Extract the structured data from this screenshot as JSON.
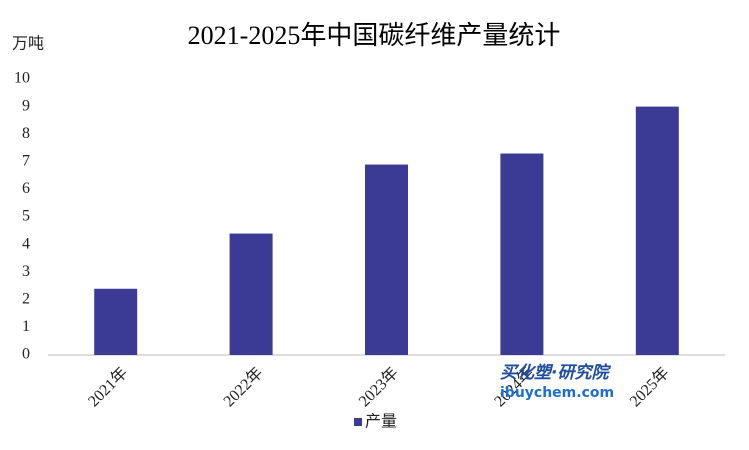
{
  "chart_data": {
    "type": "bar",
    "title": "2021-2025年中国碳纤维产量统计",
    "y_label": "万吨",
    "categories": [
      "2021年",
      "2022年",
      "2023年",
      "2024年",
      "2025年"
    ],
    "series": [
      {
        "name": "产量",
        "color": "#3b3b96",
        "values": [
          2.4,
          4.4,
          6.9,
          7.3,
          9.0
        ]
      }
    ],
    "ylim": [
      0,
      10
    ],
    "yticks": [
      0,
      1,
      2,
      3,
      4,
      5,
      6,
      7,
      8,
      9,
      10
    ],
    "grid": false,
    "legend": "bottom",
    "watermark": [
      "买化塑·研究院",
      "ibuychem.com"
    ]
  }
}
